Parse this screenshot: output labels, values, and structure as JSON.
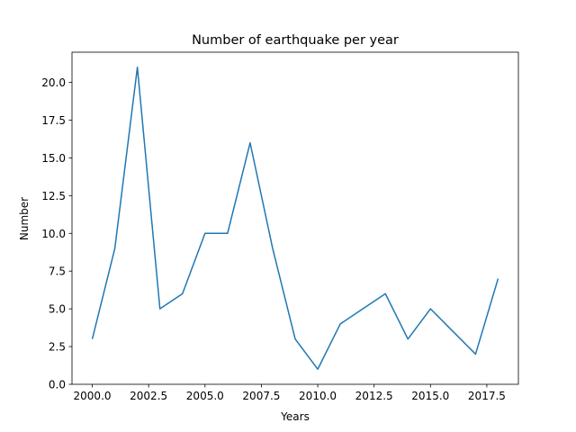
{
  "chart_data": {
    "type": "line",
    "title": "Number of earthquake per year",
    "xlabel": "Years",
    "ylabel": "Number",
    "x": [
      2000,
      2001,
      2002,
      2003,
      2004,
      2005,
      2006,
      2007,
      2008,
      2009,
      2010,
      2011,
      2012,
      2013,
      2014,
      2015,
      2016,
      2017,
      2018
    ],
    "series": [
      {
        "values": [
          3,
          9,
          21,
          5,
          6,
          10,
          10,
          16,
          9,
          3,
          1,
          4,
          5,
          6,
          3,
          5,
          3.5,
          2,
          7
        ]
      }
    ],
    "xlim": [
      1999.1,
      2018.9
    ],
    "ylim": [
      0,
      22
    ],
    "xticks": [
      "2000.0",
      "2002.5",
      "2005.0",
      "2007.5",
      "2010.0",
      "2012.5",
      "2015.0",
      "2017.5"
    ],
    "yticks": [
      "0.0",
      "2.5",
      "5.0",
      "7.5",
      "10.0",
      "12.5",
      "15.0",
      "17.5",
      "20.0"
    ],
    "grid": false,
    "line_color": "#1f77b4"
  }
}
